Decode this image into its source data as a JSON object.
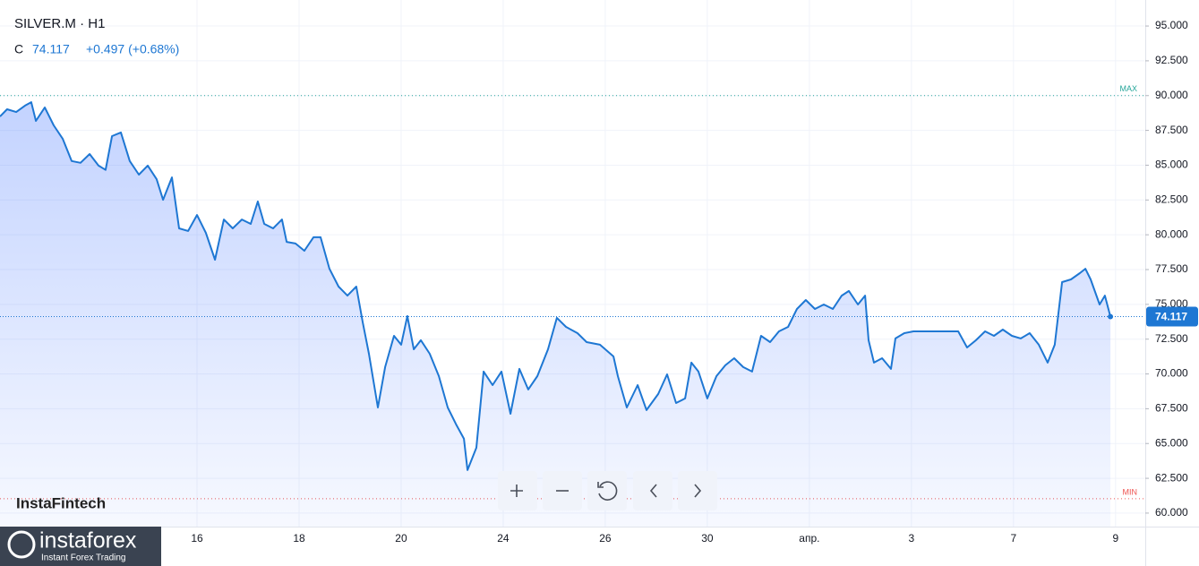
{
  "header": {
    "symbol": "SILVER.M · H1",
    "close_label": "C",
    "change": "+0.497 (+0.68%)"
  },
  "watermark": "InstaFintech",
  "logo": {
    "name": "instaforex",
    "tagline": "Instant Forex Trading"
  },
  "chart_data": {
    "type": "area",
    "color": "#1e77d3",
    "grid": true,
    "x": [
      -88.8,
      -85.6,
      -81.5,
      -77.5,
      -74.7,
      -72.6,
      -68.6,
      -64.6,
      -60.5,
      -56.5,
      -52.5,
      -48.4,
      -44.4,
      -41.2,
      -38.3,
      -34.3,
      -30.3,
      -26.2,
      -22.2,
      -18.2,
      -15.3,
      -11.3,
      -8.1,
      -4.0,
      0,
      4.0,
      8.1,
      12.1,
      16.1,
      20.2,
      24.2,
      27.4,
      30.3,
      34.3,
      38.3,
      40.4,
      44.4,
      48.4,
      52.5,
      55.7,
      59.7,
      63.8,
      67.8,
      71.8,
      74.7,
      77.5,
      81.5,
      84.8,
      88.8,
      92.0,
      94.8,
      97.7,
      100.9,
      104.9,
      109.0,
      113.0,
      117.0,
      120.3,
      121.9,
      125.9,
      129.2,
      133.2,
      137.2,
      141.3,
      145.3,
      149.3,
      153.4,
      158.2,
      162.2,
      166.3,
      171.5,
      175.6,
      181.6,
      187.7,
      189.7,
      193.7,
      198.6,
      202.6,
      207.9,
      211.9,
      215.9,
      220.0,
      222.8,
      226.0,
      230.0,
      234.1,
      238.1,
      242.1,
      246.2,
      250.2,
      254.2,
      258.3,
      262.3,
      266.4,
      270.4,
      274.4,
      278.5,
      282.5,
      286.6,
      290.6,
      293.8,
      297.9,
      301.1,
      302.7,
      305.1,
      308.8,
      312.8,
      314.8,
      318.8,
      322.9,
      331.0,
      343.1,
      347.1,
      351.1,
      355.2,
      359.2,
      363.2,
      367.3,
      371.3,
      375.3,
      379.4,
      383.4,
      386.6,
      389.9,
      393.9,
      397.9,
      400.4,
      402.8,
      406.8,
      409.2,
      411.7
    ],
    "values": [
      88.5,
      89.02,
      88.82,
      89.28,
      89.53,
      88.18,
      89.15,
      87.86,
      86.89,
      85.3,
      85.17,
      85.8,
      84.97,
      84.66,
      87.09,
      87.35,
      85.3,
      84.32,
      84.97,
      83.99,
      82.51,
      84.12,
      80.46,
      80.27,
      81.42,
      80.14,
      78.21,
      81.1,
      80.46,
      81.1,
      80.78,
      82.39,
      80.78,
      80.46,
      81.1,
      79.49,
      79.37,
      78.85,
      79.82,
      79.82,
      77.56,
      76.28,
      75.63,
      76.28,
      73.7,
      71.45,
      67.59,
      70.49,
      72.74,
      72.1,
      74.16,
      71.77,
      72.42,
      71.45,
      69.84,
      67.59,
      66.31,
      65.34,
      63.09,
      64.7,
      70.17,
      69.2,
      70.17,
      67.14,
      70.36,
      68.88,
      69.84,
      71.77,
      74.03,
      73.38,
      72.93,
      72.29,
      72.1,
      71.26,
      69.84,
      67.59,
      69.2,
      67.4,
      68.56,
      69.97,
      67.91,
      68.24,
      70.81,
      70.17,
      68.24,
      69.84,
      70.62,
      71.13,
      70.49,
      70.17,
      72.74,
      72.29,
      73.06,
      73.38,
      74.67,
      75.31,
      74.67,
      74.99,
      74.67,
      75.63,
      75.96,
      74.99,
      75.63,
      72.42,
      70.81,
      71.13,
      70.36,
      72.55,
      72.93,
      73.06,
      73.06,
      73.06,
      71.9,
      72.42,
      73.06,
      72.74,
      73.19,
      72.74,
      72.55,
      72.93,
      72.1,
      70.81,
      72.1,
      76.6,
      76.79,
      77.24,
      77.56,
      76.79,
      74.99,
      75.63,
      74.117
    ],
    "xlim": [
      -88.8,
      427
    ],
    "ylim": [
      59.03,
      96.87
    ],
    "xticks": [
      {
        "value": 0,
        "label": "16"
      },
      {
        "value": 46,
        "label": "18"
      },
      {
        "value": 92,
        "label": "20"
      },
      {
        "value": 138,
        "label": "24"
      },
      {
        "value": 184,
        "label": "26"
      },
      {
        "value": 230,
        "label": "30"
      },
      {
        "value": 276,
        "label": "апр."
      },
      {
        "value": 322,
        "label": "3"
      },
      {
        "value": 368,
        "label": "7"
      },
      {
        "value": 414,
        "label": "9"
      }
    ],
    "yticks": [
      {
        "value": 60,
        "label": "60.000"
      },
      {
        "value": 62.5,
        "label": "62.500"
      },
      {
        "value": 65,
        "label": "65.000"
      },
      {
        "value": 67.5,
        "label": "67.500"
      },
      {
        "value": 70,
        "label": "70.000"
      },
      {
        "value": 72.5,
        "label": "72.500"
      },
      {
        "value": 75,
        "label": "75.000"
      },
      {
        "value": 77.5,
        "label": "77.500"
      },
      {
        "value": 80,
        "label": "80.000"
      },
      {
        "value": 82.5,
        "label": "82.500"
      },
      {
        "value": 85,
        "label": "85.000"
      },
      {
        "value": 87.5,
        "label": "87.500"
      },
      {
        "value": 90,
        "label": "90.000"
      },
      {
        "value": 92.5,
        "label": "92.500"
      },
      {
        "value": 95,
        "label": "95.000"
      }
    ],
    "last_price": {
      "value": 74.117,
      "label": "74.117"
    },
    "max_line": {
      "value": 90.0,
      "label": "MAX",
      "color": "#26a69a"
    },
    "min_line": {
      "value": 61.03,
      "label": "MIN",
      "color": "#ef5350"
    }
  }
}
